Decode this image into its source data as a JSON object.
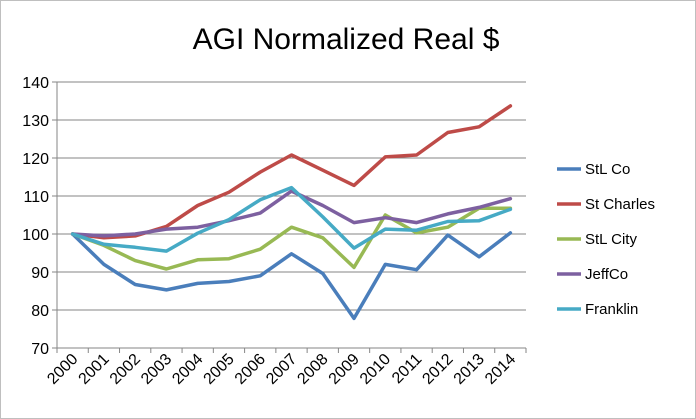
{
  "chart_data": {
    "type": "line",
    "title": "AGI Normalized Real $",
    "xlabel": "",
    "ylabel": "",
    "x": [
      "2000",
      "2001",
      "2002",
      "2003",
      "2004",
      "2005",
      "2006",
      "2007",
      "2008",
      "2009",
      "2010",
      "2011",
      "2012",
      "2013",
      "2014"
    ],
    "ylim": [
      70,
      140
    ],
    "yticks": [
      70,
      80,
      90,
      100,
      110,
      120,
      130,
      140
    ],
    "grid": true,
    "legend": "right",
    "series": [
      {
        "name": "StL Co",
        "color": "#4a7ebb",
        "values": [
          100,
          92.0,
          86.7,
          85.3,
          87.0,
          87.5,
          89.0,
          94.8,
          89.6,
          77.8,
          92.0,
          90.6,
          99.7,
          94.0,
          100.3
        ]
      },
      {
        "name": "St Charles",
        "color": "#be4b48",
        "values": [
          100,
          99.0,
          99.5,
          102.0,
          107.5,
          111.0,
          116.3,
          120.8,
          116.8,
          112.8,
          120.3,
          120.8,
          126.7,
          128.2,
          133.7
        ]
      },
      {
        "name": "StL City",
        "color": "#98b954",
        "values": [
          100,
          97.0,
          93.0,
          90.8,
          93.2,
          93.5,
          96.0,
          101.8,
          99.0,
          91.2,
          105.0,
          100.3,
          101.8,
          106.8,
          106.8
        ]
      },
      {
        "name": "JeffCo",
        "color": "#7d60a0",
        "values": [
          100,
          99.5,
          100.0,
          101.3,
          101.8,
          103.5,
          105.5,
          111.3,
          107.5,
          103.0,
          104.3,
          103.0,
          105.3,
          107.0,
          109.3
        ]
      },
      {
        "name": "Franklin",
        "color": "#46aac5",
        "values": [
          100,
          97.3,
          96.5,
          95.5,
          100.2,
          103.8,
          109.0,
          112.2,
          104.5,
          96.3,
          101.3,
          101.0,
          103.3,
          103.5,
          106.5
        ]
      }
    ]
  }
}
